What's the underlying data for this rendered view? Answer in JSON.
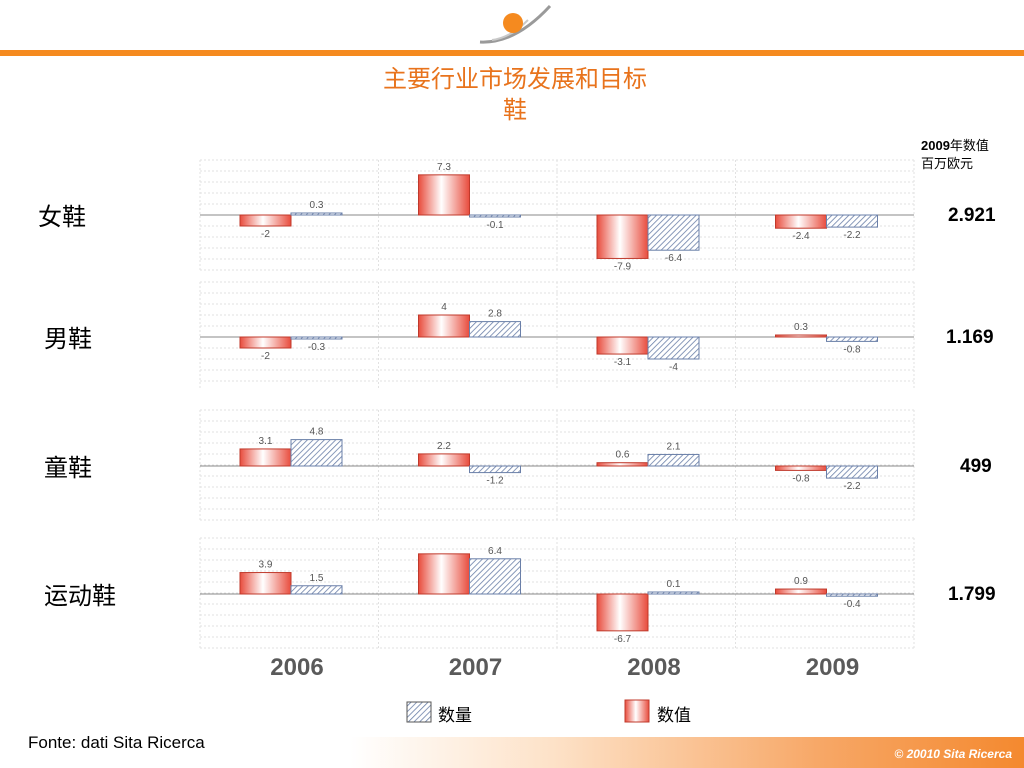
{
  "title_line1": "主要行业市场发展和目标",
  "title_line2": "鞋",
  "unit_note": {
    "year": "2009",
    "year_suffix": "年数值",
    "unit": "百万欧元"
  },
  "legend": {
    "quantity": "数量",
    "value": "数值"
  },
  "source": "Fonte: dati Sita Ricerca",
  "copyright": "© 20010 Sita Ricerca",
  "colors": {
    "accent": "#f58a1f",
    "title": "#e8731c",
    "value_bar": "#e84c3d",
    "quantity_bar": "#6a7fa8"
  },
  "chart_data": {
    "type": "bar",
    "categories": [
      "2006",
      "2007",
      "2008",
      "2009"
    ],
    "panels": [
      {
        "label": "女鞋",
        "total": "2.921",
        "series": [
          {
            "name": "数值",
            "values": [
              -2,
              7.3,
              -7.9,
              -2.4
            ]
          },
          {
            "name": "数量",
            "values": [
              0.3,
              -0.1,
              -6.4,
              -2.2
            ]
          }
        ]
      },
      {
        "label": "男鞋",
        "total": "1.169",
        "series": [
          {
            "name": "数值",
            "values": [
              -2,
              4,
              -3.1,
              0.3
            ]
          },
          {
            "name": "数量",
            "values": [
              -0.3,
              2.8,
              -4,
              -0.8
            ]
          }
        ]
      },
      {
        "label": "童鞋",
        "total": "499",
        "series": [
          {
            "name": "数值",
            "values": [
              3.1,
              2.2,
              0.6,
              -0.8
            ]
          },
          {
            "name": "数量",
            "values": [
              4.8,
              -1.2,
              2.1,
              -2.2
            ]
          }
        ]
      },
      {
        "label": "运动鞋",
        "total": "1.799",
        "series": [
          {
            "name": "数值",
            "values": [
              3.9,
              7.3,
              -6.7,
              0.9
            ]
          },
          {
            "name": "数量",
            "values": [
              1.5,
              6.4,
              0.1,
              -0.4
            ]
          }
        ],
        "value_labels_shown": [
          true,
          false,
          true,
          true
        ]
      }
    ]
  }
}
